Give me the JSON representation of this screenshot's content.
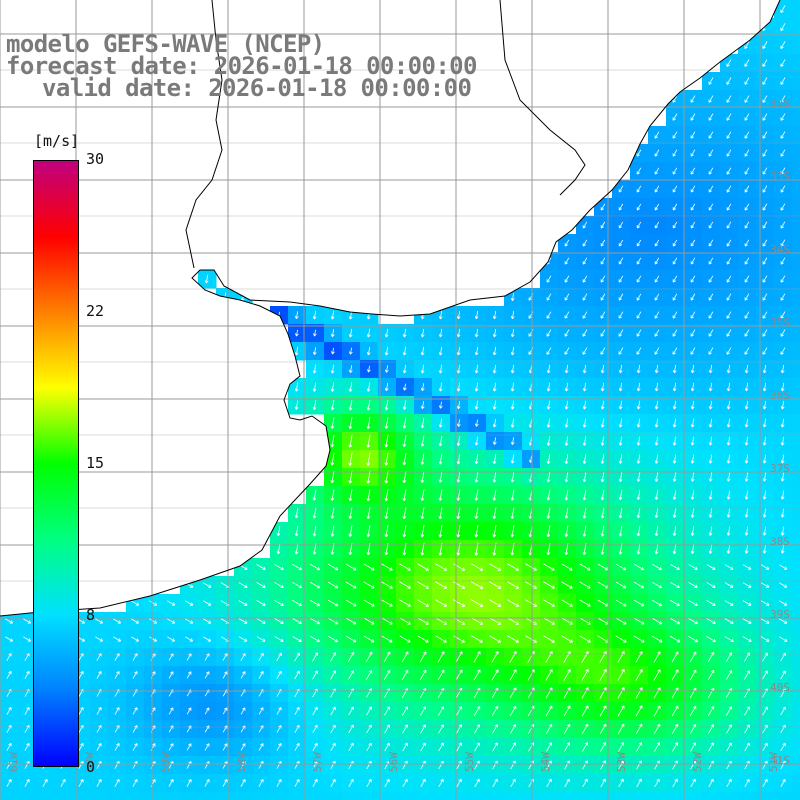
{
  "header": {
    "title": "modelo GEFS-WAVE (NCEP)",
    "forecast": "forecast date: 2026-01-18 00:00:00",
    "valid": "valid date: 2026-01-18 00:00:00"
  },
  "colorbar": {
    "unit": "[m/s]",
    "ticks": [
      {
        "value": 30,
        "label": "30"
      },
      {
        "value": 22,
        "label": "22"
      },
      {
        "value": 15,
        "label": "15"
      },
      {
        "value": 8,
        "label": "8"
      },
      {
        "value": 0,
        "label": "0"
      }
    ],
    "range": [
      0,
      30
    ],
    "colors": [
      "#0000ff",
      "#0080ff",
      "#00e0ff",
      "#00ff80",
      "#00ff00",
      "#ffff00",
      "#ff8000",
      "#ff0000",
      "#c00080"
    ]
  },
  "map": {
    "lat_labels": [
      "32S",
      "33S",
      "34S",
      "35S",
      "36S",
      "37S",
      "38S",
      "39S",
      "40S",
      "41S"
    ],
    "lon_labels": [
      "61W",
      "60W",
      "59W",
      "58W",
      "57W",
      "56W",
      "55W",
      "54W",
      "53W",
      "52W",
      "51W"
    ],
    "land_color": "#ffffff",
    "coast_color": "#000000",
    "grid_color": "#999999"
  }
}
